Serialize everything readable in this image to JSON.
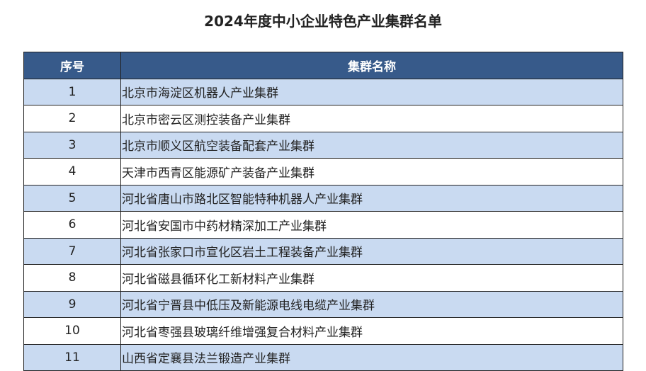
{
  "title": "2024年度中小企业特色产业集群名单",
  "table": {
    "headers": [
      "序号",
      "集群名称"
    ],
    "rows": [
      {
        "no": "1",
        "name": "北京市海淀区机器人产业集群"
      },
      {
        "no": "2",
        "name": "北京市密云区测控装备产业集群"
      },
      {
        "no": "3",
        "name": "北京市顺义区航空装备配套产业集群"
      },
      {
        "no": "4",
        "name": "天津市西青区能源矿产装备产业集群"
      },
      {
        "no": "5",
        "name": "河北省唐山市路北区智能特种机器人产业集群"
      },
      {
        "no": "6",
        "name": "河北省安国市中药材精深加工产业集群"
      },
      {
        "no": "7",
        "name": "河北省张家口市宣化区岩土工程装备产业集群"
      },
      {
        "no": "8",
        "name": "河北省磁县循环化工新材料产业集群"
      },
      {
        "no": "9",
        "name": "河北省宁晋县中低压及新能源电线电缆产业集群"
      },
      {
        "no": "10",
        "name": "河北省枣强县玻璃纤维增强复合材料产业集群"
      },
      {
        "no": "11",
        "name": "山西省定襄县法兰锻造产业集群"
      }
    ]
  },
  "colors": {
    "header_bg": "#375a8a",
    "alt_row_bg": "#c9daf1"
  }
}
